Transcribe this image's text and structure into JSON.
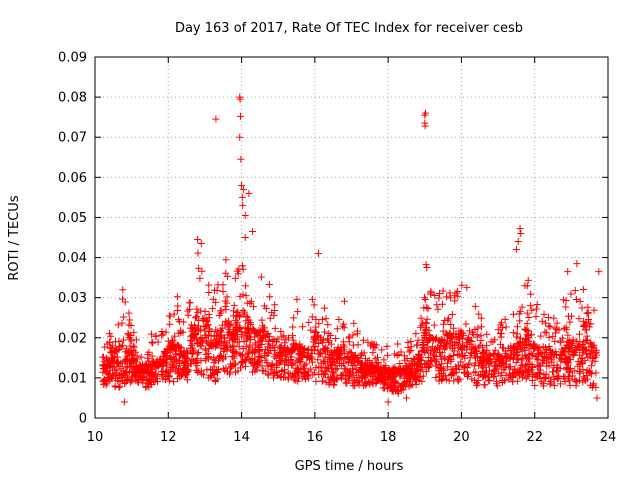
{
  "chart_data": {
    "type": "scatter",
    "title": "Day 163 of 2017, Rate Of TEC Index for receiver cesb",
    "xlabel": "GPS time / hours",
    "ylabel": "ROTI / TECUs",
    "xlim": [
      10,
      24
    ],
    "ylim": [
      0,
      0.09
    ],
    "x_ticks": [
      {
        "value": 10,
        "label": "10"
      },
      {
        "value": 12,
        "label": "12"
      },
      {
        "value": 14,
        "label": "14"
      },
      {
        "value": 16,
        "label": "16"
      },
      {
        "value": 18,
        "label": "18"
      },
      {
        "value": 20,
        "label": "20"
      },
      {
        "value": 22,
        "label": "22"
      },
      {
        "value": 24,
        "label": "24"
      }
    ],
    "y_ticks": [
      {
        "value": 0,
        "label": "0"
      },
      {
        "value": 0.01,
        "label": "0.01"
      },
      {
        "value": 0.02,
        "label": "0.02"
      },
      {
        "value": 0.03,
        "label": "0.03"
      },
      {
        "value": 0.04,
        "label": "0.04"
      },
      {
        "value": 0.05,
        "label": "0.05"
      },
      {
        "value": 0.06,
        "label": "0.06"
      },
      {
        "value": 0.07,
        "label": "0.07"
      },
      {
        "value": 0.08,
        "label": "0.08"
      },
      {
        "value": 0.09,
        "label": "0.09"
      }
    ],
    "grid": true,
    "marker": "+",
    "color": "#ff0000",
    "series": [
      {
        "name": "ROTI",
        "x": [
          10.2,
          10.3,
          10.4,
          10.5,
          10.6,
          10.7,
          10.8,
          10.9,
          11.0,
          11.1,
          11.2,
          11.3,
          11.4,
          11.5,
          11.6,
          11.7,
          11.8,
          11.9,
          12.0,
          12.1,
          12.2,
          12.3,
          12.4,
          12.5,
          12.6,
          12.7,
          12.8,
          12.9,
          13.0,
          13.1,
          13.2,
          13.3,
          13.4,
          13.5,
          13.6,
          13.7,
          13.8,
          13.9,
          14.0,
          14.1,
          14.2,
          14.3,
          14.4,
          14.5,
          14.6,
          14.7,
          14.8,
          14.9,
          15.0,
          15.1,
          15.2,
          15.3,
          15.4,
          15.5,
          15.6,
          15.7,
          15.8,
          15.9,
          16.0,
          16.1,
          16.2,
          16.3,
          16.4,
          16.5,
          16.6,
          16.7,
          16.8,
          16.9,
          17.0,
          17.1,
          17.2,
          17.3,
          17.4,
          17.5,
          17.6,
          17.7,
          17.8,
          17.9,
          18.0,
          18.1,
          18.2,
          18.3,
          18.4,
          18.5,
          18.6,
          18.7,
          18.8,
          18.9,
          19.0,
          19.1,
          19.2,
          19.3,
          19.4,
          19.5,
          19.6,
          19.7,
          19.8,
          19.9,
          20.0,
          20.1,
          20.2,
          20.3,
          20.4,
          20.5,
          20.6,
          20.7,
          20.8,
          20.9,
          21.0,
          21.1,
          21.2,
          21.3,
          21.4,
          21.5,
          21.6,
          21.7,
          21.8,
          21.9,
          22.0,
          22.1,
          22.2,
          22.3,
          22.4,
          22.5,
          22.6,
          22.7,
          22.8,
          22.9,
          23.0,
          23.1,
          23.2,
          23.3,
          23.4,
          23.5,
          23.6,
          23.7,
          23.8
        ],
        "ylow": [
          0.008,
          0.007,
          0.009,
          0.008,
          0.006,
          0.007,
          0.008,
          0.008,
          0.009,
          0.009,
          0.008,
          0.008,
          0.007,
          0.008,
          0.008,
          0.009,
          0.009,
          0.009,
          0.009,
          0.009,
          0.009,
          0.01,
          0.01,
          0.009,
          0.01,
          0.01,
          0.01,
          0.01,
          0.01,
          0.01,
          0.009,
          0.009,
          0.01,
          0.01,
          0.01,
          0.01,
          0.011,
          0.011,
          0.012,
          0.012,
          0.012,
          0.011,
          0.011,
          0.011,
          0.011,
          0.011,
          0.01,
          0.01,
          0.01,
          0.01,
          0.01,
          0.009,
          0.009,
          0.009,
          0.009,
          0.009,
          0.009,
          0.009,
          0.009,
          0.009,
          0.008,
          0.008,
          0.008,
          0.008,
          0.008,
          0.008,
          0.008,
          0.008,
          0.008,
          0.008,
          0.008,
          0.008,
          0.008,
          0.008,
          0.008,
          0.008,
          0.008,
          0.007,
          0.007,
          0.006,
          0.006,
          0.006,
          0.006,
          0.007,
          0.008,
          0.008,
          0.008,
          0.008,
          0.009,
          0.009,
          0.009,
          0.009,
          0.009,
          0.009,
          0.009,
          0.009,
          0.009,
          0.009,
          0.009,
          0.009,
          0.009,
          0.008,
          0.008,
          0.008,
          0.008,
          0.008,
          0.008,
          0.008,
          0.008,
          0.008,
          0.009,
          0.009,
          0.009,
          0.009,
          0.009,
          0.009,
          0.009,
          0.008,
          0.008,
          0.008,
          0.008,
          0.008,
          0.008,
          0.008,
          0.008,
          0.008,
          0.008,
          0.008,
          0.008,
          0.008,
          0.008,
          0.008,
          0.008,
          0.008,
          0.007,
          0.007
        ],
        "yhigh": [
          0.02,
          0.022,
          0.026,
          0.03,
          0.028,
          0.031,
          0.033,
          0.027,
          0.024,
          0.02,
          0.02,
          0.019,
          0.02,
          0.021,
          0.022,
          0.021,
          0.022,
          0.024,
          0.026,
          0.03,
          0.033,
          0.028,
          0.024,
          0.026,
          0.03,
          0.038,
          0.043,
          0.04,
          0.044,
          0.036,
          0.033,
          0.034,
          0.033,
          0.038,
          0.04,
          0.04,
          0.036,
          0.044,
          0.038,
          0.04,
          0.04,
          0.034,
          0.032,
          0.034,
          0.037,
          0.036,
          0.034,
          0.03,
          0.028,
          0.028,
          0.029,
          0.028,
          0.03,
          0.03,
          0.028,
          0.026,
          0.025,
          0.026,
          0.038,
          0.04,
          0.03,
          0.027,
          0.026,
          0.024,
          0.026,
          0.028,
          0.03,
          0.027,
          0.026,
          0.024,
          0.021,
          0.02,
          0.018,
          0.02,
          0.019,
          0.018,
          0.018,
          0.018,
          0.018,
          0.019,
          0.02,
          0.019,
          0.019,
          0.018,
          0.02,
          0.022,
          0.024,
          0.025,
          0.04,
          0.036,
          0.032,
          0.031,
          0.031,
          0.032,
          0.033,
          0.034,
          0.033,
          0.034,
          0.036,
          0.034,
          0.032,
          0.03,
          0.028,
          0.026,
          0.025,
          0.024,
          0.024,
          0.026,
          0.028,
          0.027,
          0.026,
          0.026,
          0.027,
          0.029,
          0.03,
          0.03,
          0.04,
          0.034,
          0.03,
          0.028,
          0.026,
          0.026,
          0.026,
          0.028,
          0.027,
          0.028,
          0.03,
          0.03,
          0.032,
          0.034,
          0.032,
          0.03,
          0.038,
          0.032,
          0.03,
          0.03,
          0.028,
          0.037
        ],
        "outliers": [
          {
            "x": 13.3,
            "y": 0.0745
          },
          {
            "x": 13.95,
            "y": 0.08
          },
          {
            "x": 13.96,
            "y": 0.0795
          },
          {
            "x": 13.97,
            "y": 0.0752
          },
          {
            "x": 13.95,
            "y": 0.07
          },
          {
            "x": 13.98,
            "y": 0.0645
          },
          {
            "x": 14.0,
            "y": 0.058
          },
          {
            "x": 14.02,
            "y": 0.055
          },
          {
            "x": 14.05,
            "y": 0.057
          },
          {
            "x": 14.03,
            "y": 0.053
          },
          {
            "x": 14.1,
            "y": 0.0505
          },
          {
            "x": 14.2,
            "y": 0.056
          },
          {
            "x": 14.3,
            "y": 0.0465
          },
          {
            "x": 14.1,
            "y": 0.045
          },
          {
            "x": 19.0,
            "y": 0.0755
          },
          {
            "x": 19.02,
            "y": 0.076
          },
          {
            "x": 19.0,
            "y": 0.0735
          },
          {
            "x": 19.01,
            "y": 0.0728
          },
          {
            "x": 21.6,
            "y": 0.0472
          },
          {
            "x": 21.62,
            "y": 0.046
          },
          {
            "x": 21.55,
            "y": 0.044
          },
          {
            "x": 21.5,
            "y": 0.042
          },
          {
            "x": 12.8,
            "y": 0.0445
          },
          {
            "x": 12.9,
            "y": 0.0435
          },
          {
            "x": 16.1,
            "y": 0.041
          },
          {
            "x": 22.9,
            "y": 0.0365
          },
          {
            "x": 23.15,
            "y": 0.0385
          },
          {
            "x": 23.75,
            "y": 0.0365
          },
          {
            "x": 10.8,
            "y": 0.004
          },
          {
            "x": 18.0,
            "y": 0.004
          },
          {
            "x": 18.5,
            "y": 0.005
          },
          {
            "x": 23.7,
            "y": 0.005
          }
        ]
      }
    ]
  }
}
